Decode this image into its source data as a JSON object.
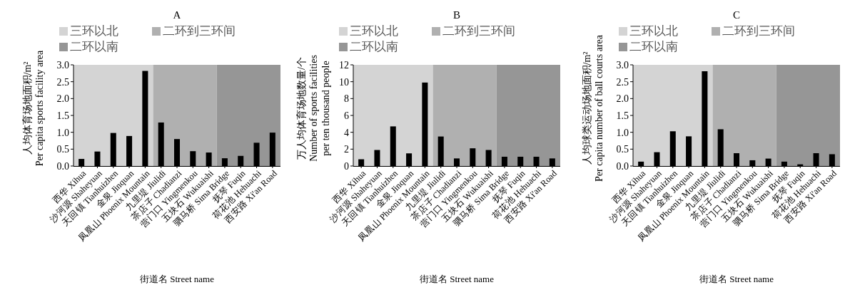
{
  "chart_data": [
    {
      "type": "bar",
      "title": "A",
      "xlabel": "街道名 Street name",
      "ylabel": "人均体育场地面积/m²\nPer capita sports facility area",
      "categories": [
        "西华 Xihua",
        "沙河源 Shaheyuan",
        "天回镇 Tianhuizhen",
        "金泉 Jinquan",
        "凤凰山 Phoenix Mountain",
        "九里堤 Jiulidi",
        "茶店子 Chadianzi",
        "营门口 Yingmenkou",
        "五块石 Wukuaishi",
        "驷马桥 Sima Bridge",
        "抚琴 Fuqin",
        "荷花池 Hehuachi",
        "西安路 Xi'an Road"
      ],
      "values": [
        0.21,
        0.43,
        0.98,
        0.89,
        2.82,
        1.29,
        0.8,
        0.44,
        0.4,
        0.23,
        0.3,
        0.69,
        0.99
      ],
      "color": "#000000",
      "ylim": [
        0,
        3
      ],
      "yticks": [
        {
          "value": 0,
          "label": "0.0"
        },
        {
          "value": 0.5,
          "label": "0.5"
        },
        {
          "value": 1,
          "label": "1.0"
        },
        {
          "value": 1.5,
          "label": "1.5"
        },
        {
          "value": 2,
          "label": "2.0"
        },
        {
          "value": 2.5,
          "label": "2.5"
        },
        {
          "value": 3,
          "label": "3.0"
        }
      ],
      "bands": [
        {
          "axis": "x",
          "from": "西华 Xihua",
          "to": "凤凰山 Phoenix Mountain",
          "label": "三环以北",
          "color": "#d4d4d4"
        },
        {
          "axis": "x",
          "from": "九里堤 Jiulidi",
          "to": "五块石 Wukuaishi",
          "label": "二环到三环间",
          "color": "#b0b0b0"
        },
        {
          "axis": "x",
          "from": "驷马桥 Sima Bridge",
          "to": "西安路 Xi'an Road",
          "label": "二环以南",
          "color": "#969696"
        }
      ],
      "legend": "top",
      "grid": false
    },
    {
      "type": "bar",
      "title": "B",
      "xlabel": "街道名 Street name",
      "ylabel": "万人均体育场地数量/个\nNumber of sports facilities\nper ten thousand people",
      "categories": [
        "西华 Xihua",
        "沙河源 Shaheyuan",
        "天回镇 Tianhuizhen",
        "金泉 Jinquan",
        "凤凰山 Phoenix Mountain",
        "九里堤 Jiulidi",
        "茶店子 Chadianzi",
        "营门口 Yingmenkou",
        "五块石 Wukuaishi",
        "驷马桥 Sima Bridge",
        "抚琴 Fuqin",
        "荷花池 Hehuachi",
        "西安路 Xi'an Road"
      ],
      "values": [
        0.8,
        1.9,
        4.7,
        1.5,
        9.9,
        3.5,
        0.9,
        2.1,
        1.9,
        1.1,
        1.1,
        1.1,
        0.9
      ],
      "color": "#000000",
      "ylim": [
        0,
        12
      ],
      "yticks": [
        0,
        2,
        4,
        6,
        8,
        10,
        12
      ],
      "bands": [
        {
          "axis": "x",
          "from": "西华 Xihua",
          "to": "凤凰山 Phoenix Mountain",
          "label": "三环以北",
          "color": "#d4d4d4"
        },
        {
          "axis": "x",
          "from": "九里堤 Jiulidi",
          "to": "五块石 Wukuaishi",
          "label": "二环到三环间",
          "color": "#b0b0b0"
        },
        {
          "axis": "x",
          "from": "驷马桥 Sima Bridge",
          "to": "西安路 Xi'an Road",
          "label": "二环以南",
          "color": "#969696"
        }
      ],
      "legend": "top",
      "grid": false
    },
    {
      "type": "bar",
      "title": "C",
      "xlabel": "街道名 Street name",
      "ylabel": "人均球类运动场地面积/m²\nPer capita number of ball courts area",
      "categories": [
        "西华 Xihua",
        "沙河源 Shaheyuan",
        "天回镇 Tianhuizhen",
        "金泉 Jinquan",
        "凤凰山 Phoenix Mountain",
        "九里堤 Jiulidi",
        "茶店子 Chadianzi",
        "营门口 Yingmenkou",
        "五块石 Wukuaishi",
        "驷马桥 Sima Bridge",
        "抚琴 Fuqin",
        "荷花池 Hehuachi",
        "西安路 Xi'an Road"
      ],
      "values": [
        0.13,
        0.41,
        1.03,
        0.88,
        2.81,
        1.09,
        0.38,
        0.17,
        0.22,
        0.13,
        0.05,
        0.38,
        0.35
      ],
      "color": "#000000",
      "ylim": [
        0,
        3
      ],
      "yticks": [
        {
          "value": 0,
          "label": "0.0"
        },
        {
          "value": 0.5,
          "label": "0.5"
        },
        {
          "value": 1,
          "label": "1.0"
        },
        {
          "value": 1.5,
          "label": "1.5"
        },
        {
          "value": 2,
          "label": "2.0"
        },
        {
          "value": 2.5,
          "label": "2.5"
        },
        {
          "value": 3,
          "label": "3.0"
        }
      ],
      "bands": [
        {
          "axis": "x",
          "from": "西华 Xihua",
          "to": "凤凰山 Phoenix Mountain",
          "label": "三环以北",
          "color": "#d4d4d4"
        },
        {
          "axis": "x",
          "from": "九里堤 Jiulidi",
          "to": "五块石 Wukuaishi",
          "label": "二环到三环间",
          "color": "#b0b0b0"
        },
        {
          "axis": "x",
          "from": "驷马桥 Sima Bridge",
          "to": "西安路 Xi'an Road",
          "label": "二环以南",
          "color": "#969696"
        }
      ],
      "legend": "top",
      "grid": false
    }
  ]
}
